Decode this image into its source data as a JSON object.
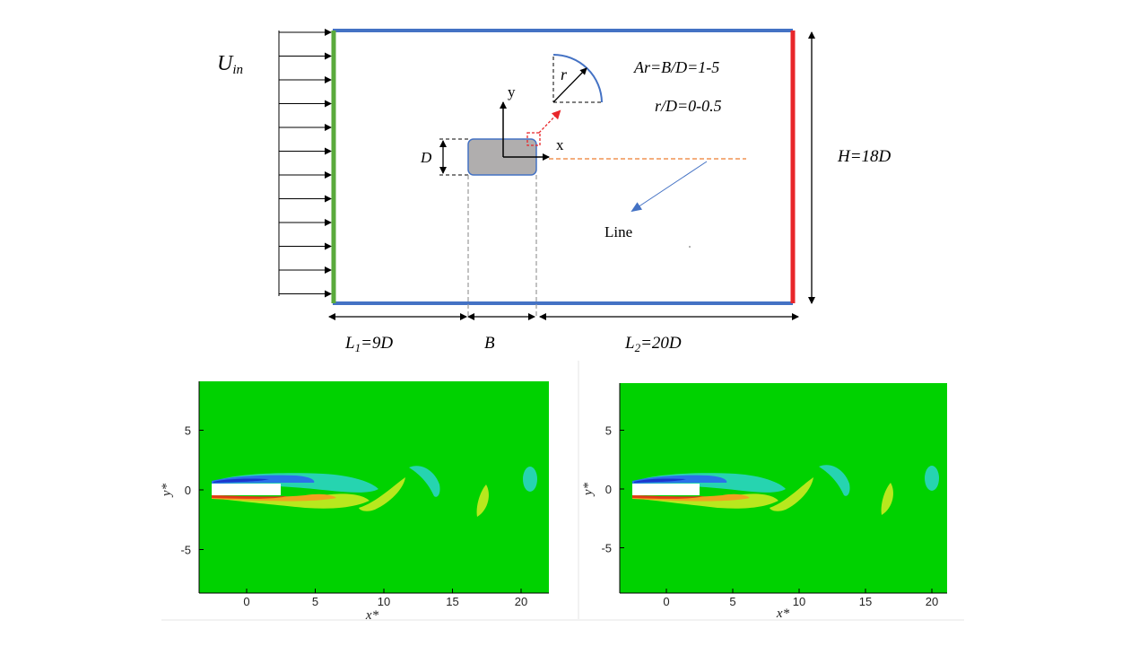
{
  "schematic": {
    "inlet_label": "U",
    "inlet_subscript": "in",
    "ar_label": "Ar=B/D=1-5",
    "rd_label": "r/D=0-0.5",
    "r_label": "r",
    "y_axis": "y",
    "x_axis": "x",
    "d_label": "D",
    "line_label": "Line",
    "h_label": "H=18D",
    "l1_label": "L",
    "l1_subscript": "1",
    "l1_suffix": "=9D",
    "b_label": "B",
    "l2_label": "L",
    "l2_subscript": "2",
    "l2_suffix": "=20D",
    "colors": {
      "inlet": "#5aaa3c",
      "walls": "#4472c4",
      "outlet": "#e8262a",
      "body": "#b0aeae",
      "line": "#ed7d31",
      "detail_box": "#e8262a"
    }
  },
  "plots": [
    {
      "xlabel": "x*",
      "ylabel": "y*",
      "x_ticks": [
        "0",
        "5",
        "10",
        "15",
        "20"
      ],
      "y_ticks": [
        "5",
        "0",
        "-5"
      ]
    },
    {
      "xlabel": "x*",
      "ylabel": "y*",
      "x_ticks": [
        "0",
        "5",
        "10",
        "15",
        "20"
      ],
      "y_ticks": [
        "5",
        "0",
        "-5"
      ]
    }
  ]
}
